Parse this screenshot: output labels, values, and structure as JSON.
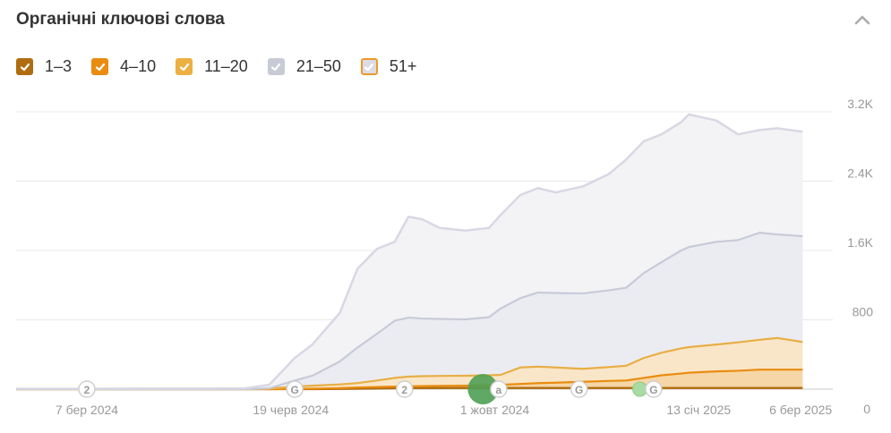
{
  "header": {
    "title": "Органічні ключові слова",
    "collapse_icon": "chevron-up-icon"
  },
  "legend": [
    {
      "label": "1–3",
      "color": "#b06d10",
      "checked": true
    },
    {
      "label": "4–10",
      "color": "#e98c10",
      "checked": true
    },
    {
      "label": "11–20",
      "color": "#ebb040",
      "checked": true
    },
    {
      "label": "21–50",
      "color": "#c8cad6",
      "checked": true
    },
    {
      "label": "51+",
      "color": "#dcdce6",
      "border": "#ec9a2a",
      "checked": true
    }
  ],
  "chart_data": {
    "type": "area",
    "stacked": true,
    "x_unit": "days since 2024-03-07",
    "x": [
      -36,
      0,
      81,
      93,
      106,
      115,
      129,
      138,
      148,
      157,
      164,
      171,
      180,
      193,
      205,
      211,
      221,
      230,
      239,
      253,
      266,
      275,
      284,
      293,
      303,
      307,
      321,
      332,
      343,
      352,
      365
    ],
    "series": [
      {
        "name": "1–3",
        "cumulative": [
          0,
          0,
          0,
          0,
          0,
          0,
          2,
          5,
          8,
          10,
          12,
          13,
          14,
          15,
          15,
          15,
          15,
          15,
          15,
          15,
          15,
          15,
          15,
          15,
          15,
          15,
          15,
          15,
          15,
          15,
          15
        ]
      },
      {
        "name": "4–10",
        "cumulative": [
          0,
          0,
          0,
          0,
          3,
          6,
          12,
          20,
          25,
          30,
          33,
          35,
          38,
          40,
          45,
          50,
          60,
          70,
          75,
          85,
          95,
          100,
          130,
          160,
          180,
          190,
          205,
          212,
          225,
          225,
          225
        ]
      },
      {
        "name": "11–20",
        "cumulative": [
          0,
          0,
          0,
          5,
          30,
          40,
          55,
          70,
          100,
          130,
          145,
          150,
          153,
          155,
          160,
          165,
          250,
          260,
          250,
          235,
          255,
          270,
          360,
          420,
          470,
          485,
          515,
          540,
          570,
          590,
          545
        ]
      },
      {
        "name": "21–50",
        "cumulative": [
          0,
          0,
          0,
          10,
          100,
          155,
          320,
          480,
          640,
          790,
          825,
          815,
          810,
          805,
          830,
          930,
          1050,
          1115,
          1110,
          1105,
          1140,
          1170,
          1340,
          1465,
          1600,
          1640,
          1700,
          1720,
          1805,
          1785,
          1765
        ]
      },
      {
        "name": "51+",
        "cumulative": [
          5,
          5,
          10,
          50,
          360,
          515,
          880,
          1390,
          1620,
          1700,
          1990,
          1960,
          1860,
          1830,
          1860,
          2010,
          2240,
          2320,
          2270,
          2340,
          2480,
          2650,
          2860,
          2940,
          3080,
          3170,
          3100,
          2940,
          2990,
          3010,
          2970
        ]
      }
    ],
    "ylim": [
      0,
      3200
    ],
    "y_ticks": [
      {
        "v": 0,
        "label": "0"
      },
      {
        "v": 800,
        "label": "800"
      },
      {
        "v": 1600,
        "label": "1.6K"
      },
      {
        "v": 2400,
        "label": "2.4K"
      },
      {
        "v": 3200,
        "label": "3.2K"
      }
    ],
    "x_ticks": [
      {
        "d": 0,
        "label": "7 бер 2024"
      },
      {
        "d": 104,
        "label": "19 черв 2024"
      },
      {
        "d": 208,
        "label": "1 жовт 2024"
      },
      {
        "d": 312,
        "label": "13 січ 2025"
      },
      {
        "d": 364,
        "label": "6 бер 2025"
      }
    ],
    "markers": [
      {
        "d": 0,
        "label": "2",
        "kind": "note"
      },
      {
        "d": 106,
        "label": "G",
        "kind": "google"
      },
      {
        "d": 162,
        "label": "2",
        "kind": "note"
      },
      {
        "d": 202,
        "label": "",
        "kind": "highlight-big"
      },
      {
        "d": 210,
        "label": "a",
        "kind": "ahrefs"
      },
      {
        "d": 251,
        "label": "G",
        "kind": "google"
      },
      {
        "d": 282,
        "label": "",
        "kind": "highlight-small"
      },
      {
        "d": 289,
        "label": "G",
        "kind": "google"
      }
    ],
    "fills": [
      "#c0843a",
      "#f6d6a6",
      "#f9e6c8",
      "#ebecf1",
      "#f3f3f6"
    ],
    "lines": [
      "#b06d10",
      "#e98c10",
      "#e8ae45",
      "#c9cad8",
      "#d8d8e4"
    ]
  }
}
